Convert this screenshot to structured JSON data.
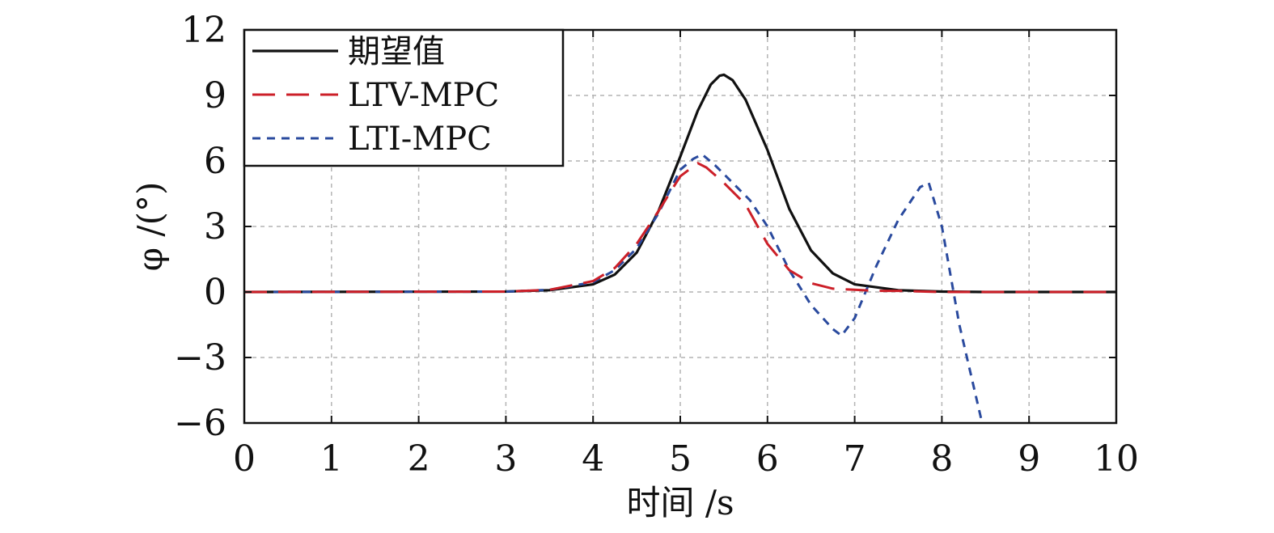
{
  "chart_data": {
    "type": "line",
    "title": "",
    "xlabel": "时间 /s",
    "ylabel": "φ /(°)",
    "xlim": [
      0,
      10
    ],
    "ylim": [
      -6,
      12
    ],
    "xticks": [
      "0",
      "1",
      "2",
      "3",
      "4",
      "5",
      "6",
      "7",
      "8",
      "9",
      "10"
    ],
    "yticks": [
      "−6",
      "−3",
      "0",
      "3",
      "6",
      "9",
      "12"
    ],
    "grid": true,
    "legend_position": "top-left",
    "series": [
      {
        "name": "期望值",
        "color": "#111111",
        "style": "solid",
        "x": [
          0,
          3,
          3.5,
          4,
          4.25,
          4.5,
          4.75,
          5,
          5.2,
          5.35,
          5.45,
          5.5,
          5.6,
          5.75,
          6,
          6.25,
          6.5,
          6.75,
          7,
          7.5,
          8,
          8.5,
          9,
          10
        ],
        "y": [
          0,
          0.02,
          0.08,
          0.35,
          0.8,
          1.8,
          3.7,
          6.2,
          8.3,
          9.5,
          9.9,
          9.95,
          9.7,
          8.8,
          6.5,
          3.8,
          1.9,
          0.85,
          0.35,
          0.08,
          0.02,
          0,
          0,
          0
        ]
      },
      {
        "name": "LTV-MPC",
        "color": "#cc1f28",
        "style": "dashed",
        "x": [
          0,
          3,
          3.5,
          4,
          4.25,
          4.5,
          4.75,
          5,
          5.1,
          5.2,
          5.3,
          5.5,
          5.75,
          6,
          6.25,
          6.5,
          6.75,
          7,
          7.25,
          7.5,
          8,
          9,
          10
        ],
        "y": [
          0,
          0.02,
          0.1,
          0.5,
          1.1,
          2.2,
          3.7,
          5.3,
          5.6,
          5.9,
          5.7,
          5.0,
          4.0,
          2.2,
          1.0,
          0.4,
          0.15,
          0.1,
          0.05,
          0.05,
          0,
          0,
          0
        ]
      },
      {
        "name": "LTI-MPC",
        "color": "#2a4a9e",
        "style": "dotted",
        "x": [
          0,
          3,
          3.5,
          4,
          4.25,
          4.5,
          4.75,
          5,
          5.15,
          5.25,
          5.4,
          5.6,
          5.8,
          6,
          6.25,
          6.5,
          6.75,
          6.85,
          7,
          7.25,
          7.5,
          7.75,
          7.85,
          8,
          8.2,
          8.45
        ],
        "y": [
          0,
          0.02,
          0.1,
          0.45,
          1.0,
          2.0,
          3.6,
          5.6,
          6.1,
          6.3,
          5.8,
          5.0,
          4.2,
          3.0,
          1.0,
          -0.6,
          -1.7,
          -2.0,
          -1.2,
          1.2,
          3.3,
          4.8,
          5.0,
          3.0,
          -1.5,
          -5.8
        ]
      }
    ]
  }
}
